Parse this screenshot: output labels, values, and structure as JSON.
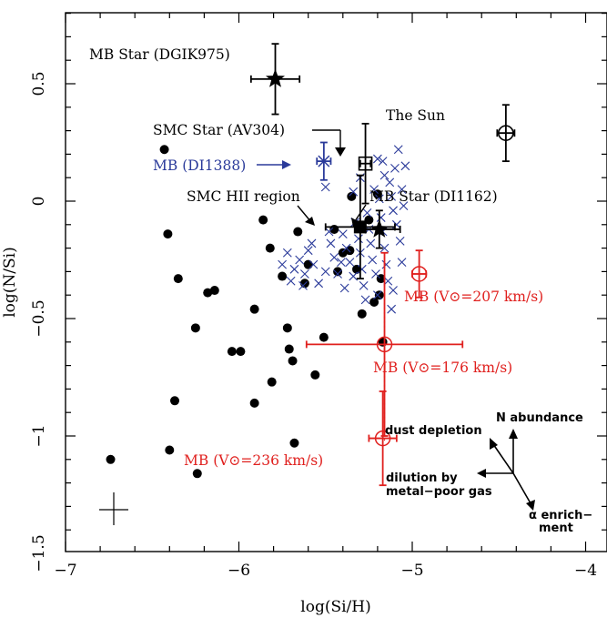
{
  "chart_data": {
    "type": "scatter",
    "xlabel": "log(Si/H)",
    "ylabel": "log(N/Si)",
    "xlim": [
      -7,
      -3.6
    ],
    "ylim": [
      -1.5,
      0.8
    ],
    "x_ticks": [
      {
        "value": -7,
        "label": "−7"
      },
      {
        "value": -6,
        "label": "−6"
      },
      {
        "value": -5,
        "label": "−5"
      },
      {
        "value": -4,
        "label": "−4"
      }
    ],
    "y_ticks": [
      {
        "value": 0.5,
        "label": "0.5"
      },
      {
        "value": 0,
        "label": "0"
      },
      {
        "value": -0.5,
        "label": "−0.5"
      },
      {
        "value": -1,
        "label": "−1"
      },
      {
        "value": -1.5,
        "label": "−1.5"
      }
    ],
    "colors": {
      "black": "#000000",
      "blue": "#2a3a9a",
      "red": "#e0201e"
    },
    "series": [
      {
        "marker": "filled-circle",
        "color": "#000000",
        "points": [
          [
            -6.74,
            -1.1
          ],
          [
            -6.43,
            0.22
          ],
          [
            -6.41,
            -0.14
          ],
          [
            -6.4,
            -1.06
          ],
          [
            -6.37,
            -0.85
          ],
          [
            -6.35,
            -0.33
          ],
          [
            -6.25,
            -0.54
          ],
          [
            -6.24,
            -1.16
          ],
          [
            -6.18,
            -0.39
          ],
          [
            -6.14,
            -0.38
          ],
          [
            -6.04,
            -0.64
          ],
          [
            -5.99,
            -0.64
          ],
          [
            -5.91,
            -0.46
          ],
          [
            -5.91,
            -0.86
          ],
          [
            -5.86,
            -0.08
          ],
          [
            -5.82,
            -0.2
          ],
          [
            -5.81,
            -0.77
          ],
          [
            -5.75,
            -0.32
          ],
          [
            -5.72,
            -0.54
          ],
          [
            -5.71,
            -0.63
          ],
          [
            -5.69,
            -0.68
          ],
          [
            -5.68,
            -1.03
          ],
          [
            -5.66,
            -0.13
          ],
          [
            -5.62,
            -0.35
          ],
          [
            -5.6,
            -0.27
          ],
          [
            -5.56,
            -0.74
          ],
          [
            -5.51,
            -0.58
          ],
          [
            -5.45,
            -0.12
          ],
          [
            -5.43,
            -0.3
          ],
          [
            -5.4,
            -0.22
          ],
          [
            -5.36,
            -0.21
          ],
          [
            -5.35,
            0.02
          ],
          [
            -5.32,
            -0.29
          ],
          [
            -5.29,
            -0.48
          ],
          [
            -5.25,
            -0.08
          ],
          [
            -5.2,
            0.03
          ],
          [
            -5.19,
            -0.4
          ],
          [
            -5.18,
            -0.33
          ],
          [
            -5.17,
            -0.6
          ],
          [
            -5.22,
            -0.43
          ]
        ]
      },
      {
        "marker": "cross",
        "color": "#2a3a9a",
        "points": [
          [
            -5.75,
            -0.27
          ],
          [
            -5.72,
            -0.22
          ],
          [
            -5.68,
            -0.29
          ],
          [
            -5.65,
            -0.25
          ],
          [
            -5.7,
            -0.34
          ],
          [
            -5.62,
            -0.31
          ],
          [
            -5.6,
            -0.21
          ],
          [
            -5.57,
            -0.27
          ],
          [
            -5.54,
            -0.35
          ],
          [
            -5.5,
            -0.3
          ],
          [
            -5.47,
            -0.18
          ],
          [
            -5.45,
            -0.24
          ],
          [
            -5.43,
            -0.31
          ],
          [
            -5.4,
            -0.14
          ],
          [
            -5.38,
            -0.2
          ],
          [
            -5.36,
            -0.26
          ],
          [
            -5.34,
            -0.32
          ],
          [
            -5.33,
            -0.09
          ],
          [
            -5.31,
            -0.16
          ],
          [
            -5.3,
            -0.22
          ],
          [
            -5.29,
            -0.29
          ],
          [
            -5.28,
            -0.36
          ],
          [
            -5.26,
            -0.05
          ],
          [
            -5.25,
            -0.12
          ],
          [
            -5.24,
            -0.18
          ],
          [
            -5.23,
            -0.25
          ],
          [
            -5.21,
            -0.31
          ],
          [
            -5.2,
            -0.4
          ],
          [
            -5.19,
            0.01
          ],
          [
            -5.18,
            -0.07
          ],
          [
            -5.17,
            -0.13
          ],
          [
            -5.16,
            -0.2
          ],
          [
            -5.15,
            -0.27
          ],
          [
            -5.14,
            -0.34
          ],
          [
            -5.13,
            0.08
          ],
          [
            -5.12,
            0.02
          ],
          [
            -5.11,
            -0.04
          ],
          [
            -5.1,
            0.14
          ],
          [
            -5.09,
            -0.1
          ],
          [
            -5.08,
            0.22
          ],
          [
            -5.07,
            -0.17
          ],
          [
            -5.06,
            0.05
          ],
          [
            -5.05,
            -0.02
          ],
          [
            -5.04,
            0.15
          ],
          [
            -5.16,
            0.11
          ],
          [
            -5.2,
            0.18
          ],
          [
            -5.27,
            -0.42
          ],
          [
            -5.12,
            -0.46
          ],
          [
            -5.39,
            -0.37
          ],
          [
            -5.34,
            0.04
          ],
          [
            -5.58,
            -0.18
          ],
          [
            -5.48,
            -0.13
          ],
          [
            -5.3,
            0.1
          ],
          [
            -5.06,
            -0.26
          ],
          [
            -5.22,
            0.05
          ],
          [
            -5.5,
            0.06
          ],
          [
            -5.63,
            -0.36
          ],
          [
            -5.41,
            -0.26
          ],
          [
            -5.11,
            -0.38
          ],
          [
            -5.17,
            0.17
          ]
        ]
      }
    ],
    "labeled_points": [
      {
        "label": "MB Star (DGIK975)",
        "marker": "star",
        "color": "#000000",
        "x": -5.79,
        "y": 0.52,
        "xerr": 0.14,
        "yerr": 0.15
      },
      {
        "label": "The Sun",
        "marker": "sun",
        "color": "#000000",
        "x": -4.46,
        "y": 0.29,
        "xerr": 0.05,
        "yerr": 0.12
      },
      {
        "label": "SMC Star (AV304)",
        "marker": "open-square",
        "color": "#000000",
        "x": -5.27,
        "y": 0.16,
        "xerr": 0.03,
        "yerr": 0.17
      },
      {
        "label": "MB (DI1388)",
        "marker": "blue-cross",
        "color": "#2a3a9a",
        "x": -5.51,
        "y": 0.17,
        "xerr": 0.04,
        "yerr": 0.08
      },
      {
        "label": "SMC HII region",
        "marker": "filled-square",
        "color": "#000000",
        "x": -5.3,
        "y": -0.11,
        "xerr": 0.2,
        "yerr": 0.22
      },
      {
        "label": "MB Star (DI1162)",
        "marker": "star",
        "color": "#000000",
        "x": -5.19,
        "y": -0.12,
        "xerr": 0.12,
        "yerr": 0.08
      },
      {
        "label": "MB (V⊙=207 km/s)",
        "marker": "open-circle",
        "color": "#e0201e",
        "x": -4.96,
        "y": -0.31,
        "xerr": 0.04,
        "yerr": 0.1
      },
      {
        "label": "MB (V⊙=176 km/s)",
        "marker": "open-circle",
        "color": "#e0201e",
        "x": -5.16,
        "y": -0.61,
        "xerr": 0.45,
        "yerr": 0.39
      },
      {
        "label": "MB (V⊙=236 km/s)",
        "marker": "open-circle",
        "color": "#e0201e",
        "x": -5.17,
        "y": -1.01,
        "xerr": 0.08,
        "yerr": 0.2
      }
    ],
    "annotations": {
      "vectors": [
        "N abundance",
        "dust depletion",
        "dilution by metal−poor gas",
        "α enrich− ment"
      ]
    }
  }
}
